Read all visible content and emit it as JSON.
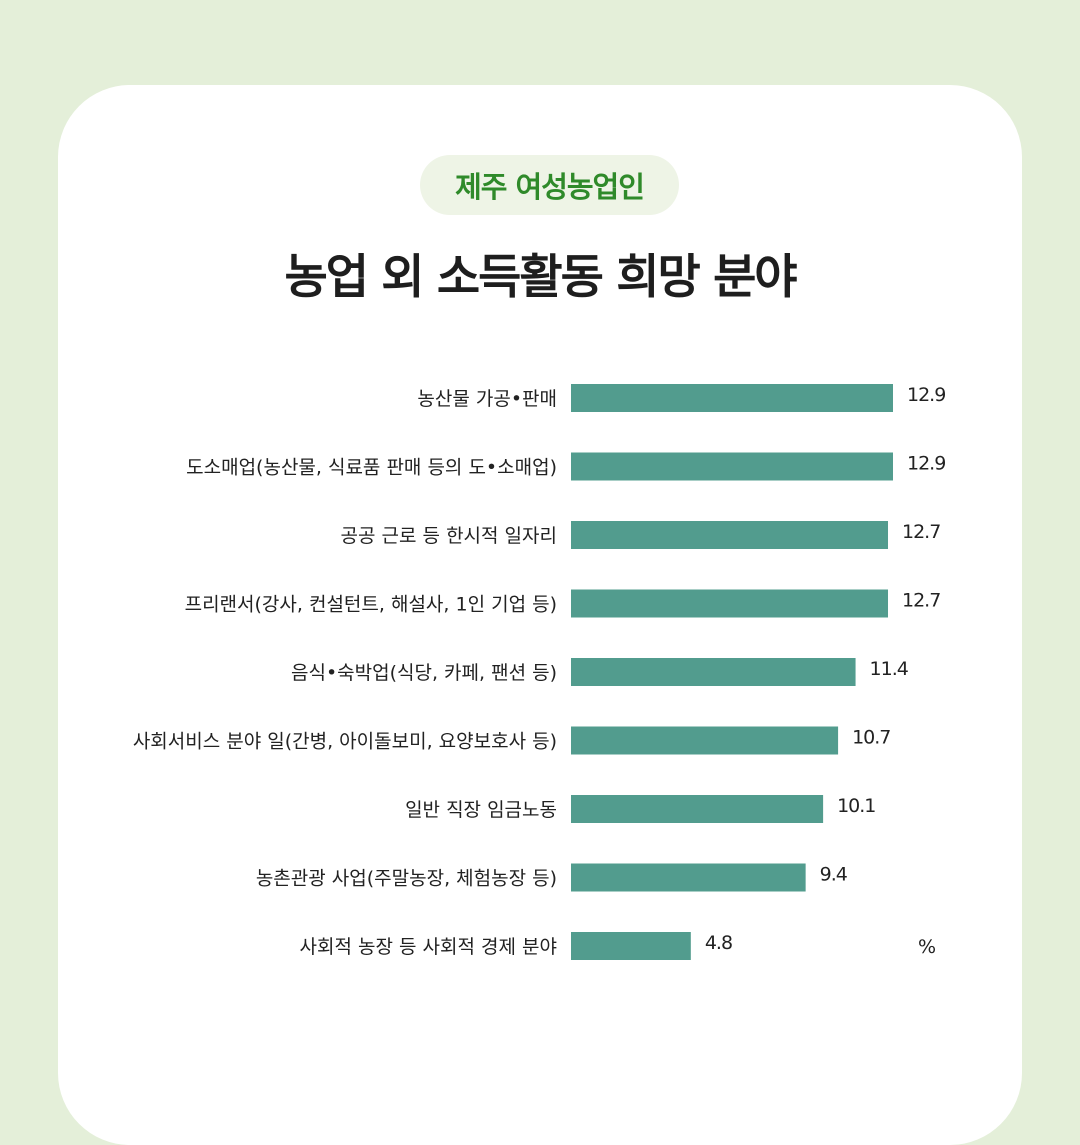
{
  "header": {
    "badge": "제주 여성농업인",
    "title": "농업 외 소득활동 희망 분야"
  },
  "colors": {
    "background": "#e4efd9",
    "card": "#ffffff",
    "bar": "#529c8e",
    "badge_text": "#2f8a2a",
    "badge_bg": "#eef4e6"
  },
  "chart_data": {
    "type": "bar",
    "orientation": "horizontal",
    "categories": [
      "농산물 가공•판매",
      "도소매업(농산물, 식료품 판매 등의 도•소매업)",
      "공공 근로 등 한시적 일자리",
      "프리랜서(강사, 컨설턴트, 해설사, 1인 기업 등)",
      "음식•숙박업(식당, 카페, 팬션 등)",
      "사회서비스 분야 일(간병, 아이돌보미, 요양보호사 등)",
      "일반 직장 임금노동",
      "농촌관광 사업(주말농장, 체험농장 등)",
      "사회적 농장 등 사회적 경제 분야"
    ],
    "values": [
      12.9,
      12.9,
      12.7,
      12.7,
      11.4,
      10.7,
      10.1,
      9.4,
      4.8
    ],
    "value_labels": [
      "12.9",
      "12.9",
      "12.7",
      "12.7",
      "11.4",
      "10.7",
      "10.1",
      "9.4",
      "4.8"
    ],
    "unit": "%",
    "xlim": [
      0,
      12.9
    ],
    "grid": false,
    "legend": "none"
  }
}
